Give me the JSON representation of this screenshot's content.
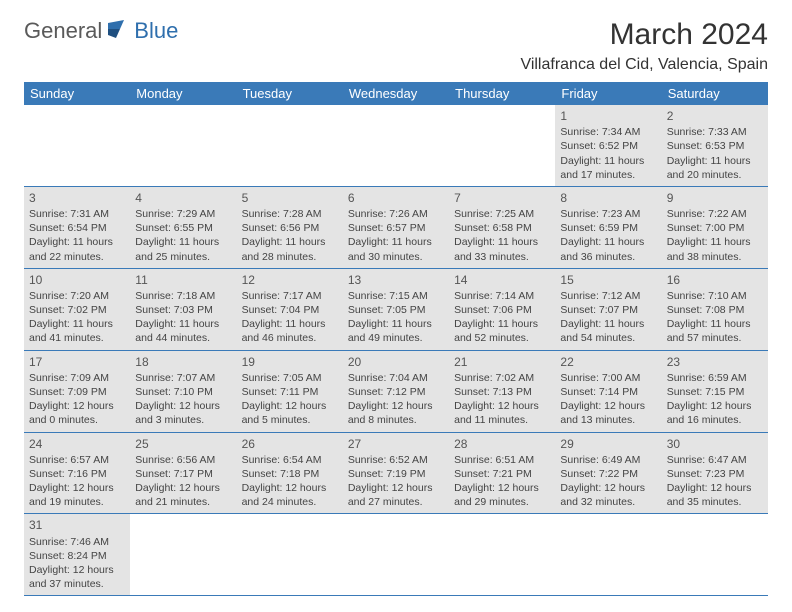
{
  "logo": {
    "general": "General",
    "blue": "Blue"
  },
  "header": {
    "month_title": "March 2024",
    "location": "Villafranca del Cid, Valencia, Spain"
  },
  "colors": {
    "header_bg": "#3a7ab8",
    "header_text": "#ffffff",
    "row_shade": "#e4e4e4",
    "border": "#3a7ab8",
    "text": "#444444",
    "logo_gray": "#5a5a5a",
    "logo_blue": "#2f6fad"
  },
  "weekdays": [
    "Sunday",
    "Monday",
    "Tuesday",
    "Wednesday",
    "Thursday",
    "Friday",
    "Saturday"
  ],
  "weeks": [
    [
      null,
      null,
      null,
      null,
      null,
      {
        "n": "1",
        "sr": "7:34 AM",
        "ss": "6:52 PM",
        "dl": "11 hours and 17 minutes."
      },
      {
        "n": "2",
        "sr": "7:33 AM",
        "ss": "6:53 PM",
        "dl": "11 hours and 20 minutes."
      }
    ],
    [
      {
        "n": "3",
        "sr": "7:31 AM",
        "ss": "6:54 PM",
        "dl": "11 hours and 22 minutes."
      },
      {
        "n": "4",
        "sr": "7:29 AM",
        "ss": "6:55 PM",
        "dl": "11 hours and 25 minutes."
      },
      {
        "n": "5",
        "sr": "7:28 AM",
        "ss": "6:56 PM",
        "dl": "11 hours and 28 minutes."
      },
      {
        "n": "6",
        "sr": "7:26 AM",
        "ss": "6:57 PM",
        "dl": "11 hours and 30 minutes."
      },
      {
        "n": "7",
        "sr": "7:25 AM",
        "ss": "6:58 PM",
        "dl": "11 hours and 33 minutes."
      },
      {
        "n": "8",
        "sr": "7:23 AM",
        "ss": "6:59 PM",
        "dl": "11 hours and 36 minutes."
      },
      {
        "n": "9",
        "sr": "7:22 AM",
        "ss": "7:00 PM",
        "dl": "11 hours and 38 minutes."
      }
    ],
    [
      {
        "n": "10",
        "sr": "7:20 AM",
        "ss": "7:02 PM",
        "dl": "11 hours and 41 minutes."
      },
      {
        "n": "11",
        "sr": "7:18 AM",
        "ss": "7:03 PM",
        "dl": "11 hours and 44 minutes."
      },
      {
        "n": "12",
        "sr": "7:17 AM",
        "ss": "7:04 PM",
        "dl": "11 hours and 46 minutes."
      },
      {
        "n": "13",
        "sr": "7:15 AM",
        "ss": "7:05 PM",
        "dl": "11 hours and 49 minutes."
      },
      {
        "n": "14",
        "sr": "7:14 AM",
        "ss": "7:06 PM",
        "dl": "11 hours and 52 minutes."
      },
      {
        "n": "15",
        "sr": "7:12 AM",
        "ss": "7:07 PM",
        "dl": "11 hours and 54 minutes."
      },
      {
        "n": "16",
        "sr": "7:10 AM",
        "ss": "7:08 PM",
        "dl": "11 hours and 57 minutes."
      }
    ],
    [
      {
        "n": "17",
        "sr": "7:09 AM",
        "ss": "7:09 PM",
        "dl": "12 hours and 0 minutes."
      },
      {
        "n": "18",
        "sr": "7:07 AM",
        "ss": "7:10 PM",
        "dl": "12 hours and 3 minutes."
      },
      {
        "n": "19",
        "sr": "7:05 AM",
        "ss": "7:11 PM",
        "dl": "12 hours and 5 minutes."
      },
      {
        "n": "20",
        "sr": "7:04 AM",
        "ss": "7:12 PM",
        "dl": "12 hours and 8 minutes."
      },
      {
        "n": "21",
        "sr": "7:02 AM",
        "ss": "7:13 PM",
        "dl": "12 hours and 11 minutes."
      },
      {
        "n": "22",
        "sr": "7:00 AM",
        "ss": "7:14 PM",
        "dl": "12 hours and 13 minutes."
      },
      {
        "n": "23",
        "sr": "6:59 AM",
        "ss": "7:15 PM",
        "dl": "12 hours and 16 minutes."
      }
    ],
    [
      {
        "n": "24",
        "sr": "6:57 AM",
        "ss": "7:16 PM",
        "dl": "12 hours and 19 minutes."
      },
      {
        "n": "25",
        "sr": "6:56 AM",
        "ss": "7:17 PM",
        "dl": "12 hours and 21 minutes."
      },
      {
        "n": "26",
        "sr": "6:54 AM",
        "ss": "7:18 PM",
        "dl": "12 hours and 24 minutes."
      },
      {
        "n": "27",
        "sr": "6:52 AM",
        "ss": "7:19 PM",
        "dl": "12 hours and 27 minutes."
      },
      {
        "n": "28",
        "sr": "6:51 AM",
        "ss": "7:21 PM",
        "dl": "12 hours and 29 minutes."
      },
      {
        "n": "29",
        "sr": "6:49 AM",
        "ss": "7:22 PM",
        "dl": "12 hours and 32 minutes."
      },
      {
        "n": "30",
        "sr": "6:47 AM",
        "ss": "7:23 PM",
        "dl": "12 hours and 35 minutes."
      }
    ],
    [
      {
        "n": "31",
        "sr": "7:46 AM",
        "ss": "8:24 PM",
        "dl": "12 hours and 37 minutes."
      },
      null,
      null,
      null,
      null,
      null,
      null
    ]
  ],
  "labels": {
    "sunrise": "Sunrise: ",
    "sunset": "Sunset: ",
    "daylight": "Daylight: "
  }
}
